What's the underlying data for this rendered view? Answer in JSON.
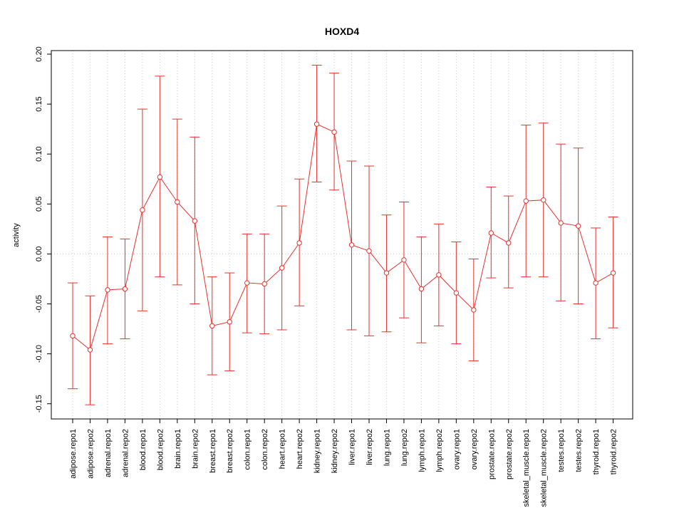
{
  "chart_data": {
    "type": "line",
    "title": "HOXD4",
    "xlabel": "",
    "ylabel": "activity",
    "ylim": [
      -0.165,
      0.2
    ],
    "yticks": [
      -0.15,
      -0.1,
      -0.05,
      0.0,
      0.05,
      0.1,
      0.15,
      0.2
    ],
    "ytick_labels": [
      "-0.15",
      "-0.10",
      "-0.05",
      "0.00",
      "0.05",
      "0.10",
      "0.15",
      "0.20"
    ],
    "grid": true,
    "color": "#e8302d",
    "categories": [
      "adipose.repo1",
      "adipose.repo2",
      "adrenal.repo1",
      "adrenal.repo2",
      "blood.repo1",
      "blood.repo2",
      "brain.repo1",
      "brain.repo2",
      "breast.repo1",
      "breast.repo2",
      "colon.repo1",
      "colon.repo2",
      "heart.repo1",
      "heart.repo2",
      "kidney.repo1",
      "kidney.repo2",
      "liver.repo1",
      "liver.repo2",
      "lung.repo1",
      "lung.repo2",
      "lymph.repo1",
      "lymph.repo2",
      "ovary.repo1",
      "ovary.repo2",
      "prostate.repo1",
      "prostate.repo2",
      "skeletal_muscle.repo1",
      "skeletal_muscle.repo2",
      "testes.repo1",
      "testes.repo2",
      "thyroid.repo1",
      "thyroid.repo2"
    ],
    "values": [
      -0.082,
      -0.096,
      -0.036,
      -0.035,
      0.044,
      0.077,
      0.052,
      0.033,
      -0.072,
      -0.068,
      -0.029,
      -0.03,
      -0.014,
      0.011,
      0.13,
      0.122,
      0.009,
      0.003,
      -0.019,
      -0.006,
      -0.035,
      -0.021,
      -0.039,
      -0.056,
      0.021,
      0.011,
      0.053,
      0.054,
      0.031,
      0.028,
      -0.029,
      -0.019
    ],
    "upper": [
      -0.029,
      -0.042,
      0.017,
      0.015,
      0.145,
      0.178,
      0.135,
      0.117,
      -0.023,
      -0.019,
      0.02,
      0.02,
      0.048,
      0.075,
      0.189,
      0.181,
      0.093,
      0.088,
      0.039,
      0.052,
      0.017,
      0.03,
      0.012,
      -0.005,
      0.067,
      0.058,
      0.129,
      0.131,
      0.11,
      0.106,
      0.026,
      0.037
    ],
    "lower": [
      -0.135,
      -0.151,
      -0.09,
      -0.085,
      -0.057,
      -0.023,
      -0.031,
      -0.05,
      -0.121,
      -0.117,
      -0.079,
      -0.08,
      -0.076,
      -0.052,
      0.072,
      0.064,
      -0.076,
      -0.082,
      -0.078,
      -0.064,
      -0.089,
      -0.072,
      -0.09,
      -0.107,
      -0.024,
      -0.034,
      -0.023,
      -0.023,
      -0.047,
      -0.05,
      -0.085,
      -0.074
    ]
  }
}
